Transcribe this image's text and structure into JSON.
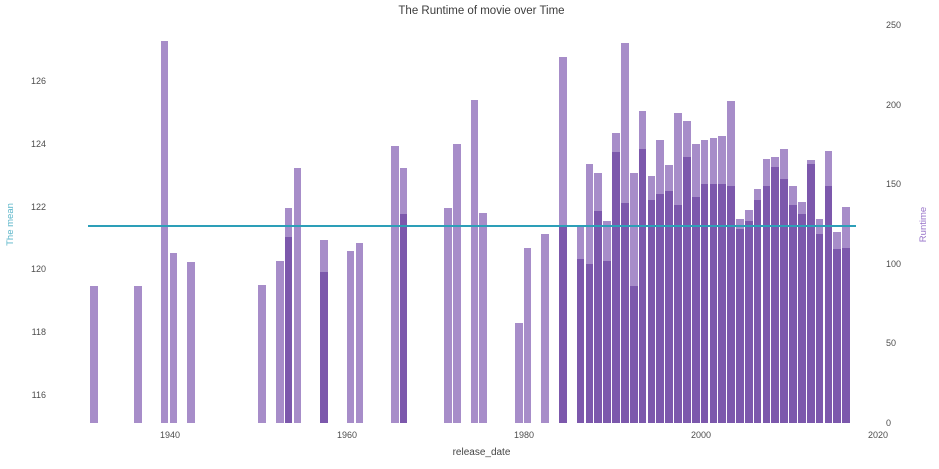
{
  "chart_data": {
    "type": "bar",
    "title": "The Runtime of movie over Time",
    "xlabel": "release_date",
    "ylabel_left": "The mean",
    "ylabel_right": "Runtime",
    "x_ticks": [
      1940,
      1960,
      1980,
      2000,
      2020
    ],
    "x_range": [
      1930.4,
      2020
    ],
    "left_ticks": [
      116,
      118,
      120,
      122,
      124,
      126
    ],
    "left_range": [
      115.1,
      127.8
    ],
    "right_ticks": [
      0,
      50,
      100,
      150,
      200,
      250
    ],
    "right_range": [
      0,
      250
    ],
    "mean_value": 121.4,
    "mean_color": "#2d9fb8",
    "left_label_color": "#58b4c8",
    "right_label_color": "#9670c8",
    "bar_color_light": "#a78dc9",
    "bar_color_dark": "#7c58ac",
    "bar_width_years": 0.87,
    "bar_year_offset": 0.4,
    "bars": [
      {
        "year": 1931,
        "runtime": 86,
        "runtime_overlap": 0
      },
      {
        "year": 1936,
        "runtime": 86,
        "runtime_overlap": 0
      },
      {
        "year": 1939,
        "runtime": 240,
        "runtime_overlap": 0
      },
      {
        "year": 1940,
        "runtime": 107,
        "runtime_overlap": 0
      },
      {
        "year": 1942,
        "runtime": 101,
        "runtime_overlap": 0
      },
      {
        "year": 1950,
        "runtime": 87,
        "runtime_overlap": 0
      },
      {
        "year": 1952,
        "runtime": 102,
        "runtime_overlap": 0
      },
      {
        "year": 1953,
        "runtime": 135,
        "runtime_overlap": 117
      },
      {
        "year": 1954,
        "runtime": 160,
        "runtime_overlap": 0
      },
      {
        "year": 1957,
        "runtime": 115,
        "runtime_overlap": 95
      },
      {
        "year": 1960,
        "runtime": 108,
        "runtime_overlap": 0
      },
      {
        "year": 1961,
        "runtime": 113,
        "runtime_overlap": 0
      },
      {
        "year": 1965,
        "runtime": 174,
        "runtime_overlap": 0
      },
      {
        "year": 1966,
        "runtime": 160,
        "runtime_overlap": 131
      },
      {
        "year": 1971,
        "runtime": 135,
        "runtime_overlap": 0
      },
      {
        "year": 1972,
        "runtime": 175,
        "runtime_overlap": 0
      },
      {
        "year": 1974,
        "runtime": 203,
        "runtime_overlap": 0
      },
      {
        "year": 1975,
        "runtime": 132,
        "runtime_overlap": 0
      },
      {
        "year": 1979,
        "runtime": 63,
        "runtime_overlap": 0
      },
      {
        "year": 1980,
        "runtime": 110,
        "runtime_overlap": 0
      },
      {
        "year": 1982,
        "runtime": 119,
        "runtime_overlap": 0
      },
      {
        "year": 1984,
        "runtime": 230,
        "runtime_overlap": 124
      },
      {
        "year": 1986,
        "runtime": 124,
        "runtime_overlap": 103
      },
      {
        "year": 1987,
        "runtime": 163,
        "runtime_overlap": 100
      },
      {
        "year": 1988,
        "runtime": 157,
        "runtime_overlap": 133
      },
      {
        "year": 1989,
        "runtime": 127,
        "runtime_overlap": 102
      },
      {
        "year": 1990,
        "runtime": 182,
        "runtime_overlap": 170
      },
      {
        "year": 1991,
        "runtime": 239,
        "runtime_overlap": 138
      },
      {
        "year": 1992,
        "runtime": 157,
        "runtime_overlap": 86
      },
      {
        "year": 1993,
        "runtime": 196,
        "runtime_overlap": 172
      },
      {
        "year": 1994,
        "runtime": 155,
        "runtime_overlap": 140
      },
      {
        "year": 1995,
        "runtime": 178,
        "runtime_overlap": 144
      },
      {
        "year": 1996,
        "runtime": 162,
        "runtime_overlap": 146
      },
      {
        "year": 1997,
        "runtime": 195,
        "runtime_overlap": 137
      },
      {
        "year": 1998,
        "runtime": 190,
        "runtime_overlap": 167
      },
      {
        "year": 1999,
        "runtime": 175,
        "runtime_overlap": 142
      },
      {
        "year": 2000,
        "runtime": 178,
        "runtime_overlap": 150
      },
      {
        "year": 2001,
        "runtime": 179,
        "runtime_overlap": 150
      },
      {
        "year": 2002,
        "runtime": 180,
        "runtime_overlap": 150
      },
      {
        "year": 2003,
        "runtime": 202,
        "runtime_overlap": 149
      },
      {
        "year": 2004,
        "runtime": 128,
        "runtime_overlap": 122
      },
      {
        "year": 2005,
        "runtime": 134,
        "runtime_overlap": 127
      },
      {
        "year": 2006,
        "runtime": 147,
        "runtime_overlap": 140
      },
      {
        "year": 2007,
        "runtime": 166,
        "runtime_overlap": 149
      },
      {
        "year": 2008,
        "runtime": 167,
        "runtime_overlap": 161
      },
      {
        "year": 2009,
        "runtime": 172,
        "runtime_overlap": 153
      },
      {
        "year": 2010,
        "runtime": 149,
        "runtime_overlap": 137
      },
      {
        "year": 2011,
        "runtime": 139,
        "runtime_overlap": 131
      },
      {
        "year": 2012,
        "runtime": 165,
        "runtime_overlap": 163
      },
      {
        "year": 2013,
        "runtime": 128,
        "runtime_overlap": 119
      },
      {
        "year": 2014,
        "runtime": 171,
        "runtime_overlap": 149
      },
      {
        "year": 2015,
        "runtime": 120,
        "runtime_overlap": 109
      },
      {
        "year": 2016,
        "runtime": 136,
        "runtime_overlap": 110
      }
    ]
  }
}
